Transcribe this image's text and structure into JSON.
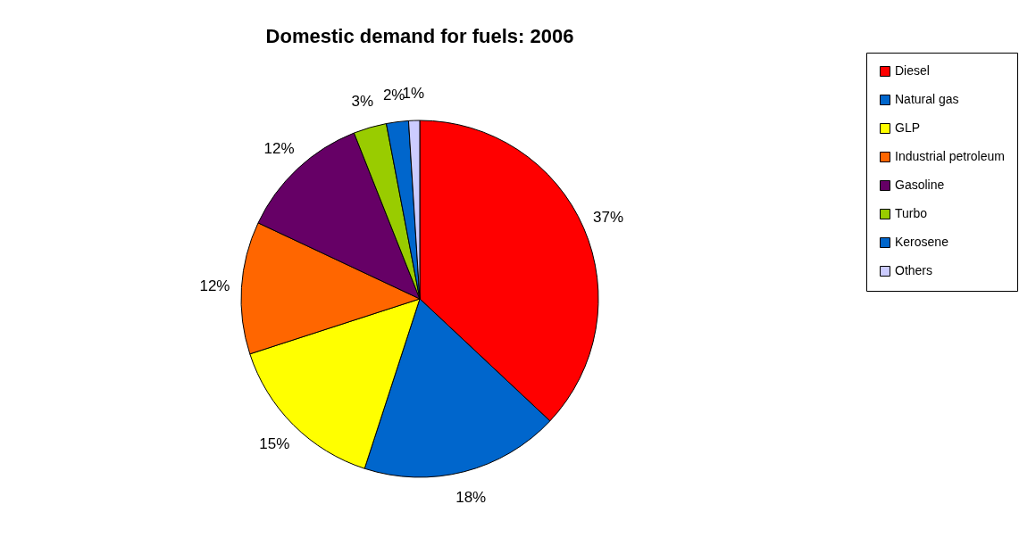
{
  "chart_data": {
    "type": "pie",
    "title": "Domestic demand for fuels: 2006",
    "categories": [
      "Diesel",
      "Natural gas",
      "GLP",
      "Industrial petroleum",
      "Gasoline",
      "Turbo",
      "Kerosene",
      "Others"
    ],
    "values": [
      37,
      18,
      15,
      12,
      12,
      3,
      2,
      1
    ],
    "colors": [
      "#ff0000",
      "#0066cc",
      "#ffff00",
      "#ff6600",
      "#660066",
      "#99cc00",
      "#0066cc",
      "#ccccff"
    ],
    "value_labels": [
      "37%",
      "18%",
      "15%",
      "12%",
      "12%",
      "3%",
      "2%",
      "1%"
    ],
    "legend": "right"
  }
}
